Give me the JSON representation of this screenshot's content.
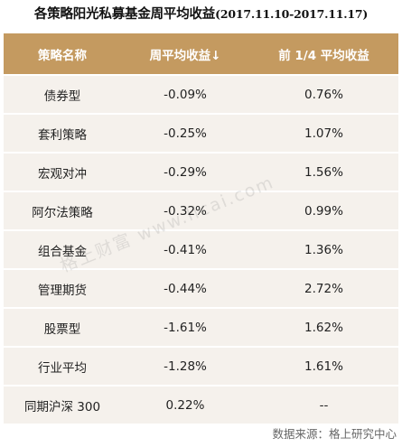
{
  "title": {
    "main": "各策略阳光私募基金周平均收益",
    "range": "(2017.11.10-2017.11.17)"
  },
  "table": {
    "headers": [
      "策略名称",
      "周平均收益↓",
      "前 1/4 平均收益"
    ],
    "rows": [
      [
        "债券型",
        "-0.09%",
        "0.76%"
      ],
      [
        "套利策略",
        "-0.25%",
        "1.07%"
      ],
      [
        "宏观对冲",
        "-0.29%",
        "1.56%"
      ],
      [
        "阿尔法策略",
        "-0.32%",
        "0.99%"
      ],
      [
        "组合基金",
        "-0.41%",
        "1.36%"
      ],
      [
        "管理期货",
        "-0.44%",
        "2.72%"
      ],
      [
        "股票型",
        "-1.61%",
        "1.62%"
      ],
      [
        "行业平均",
        "-1.28%",
        "1.61%"
      ],
      [
        "同期沪深 300",
        "0.22%",
        "--"
      ]
    ]
  },
  "watermark": "格上财富 www.licai.com",
  "footer": "数据来源：格上研究中心",
  "colors": {
    "header_bg": "#c49a60",
    "row_bg": "#f5f1ec"
  }
}
